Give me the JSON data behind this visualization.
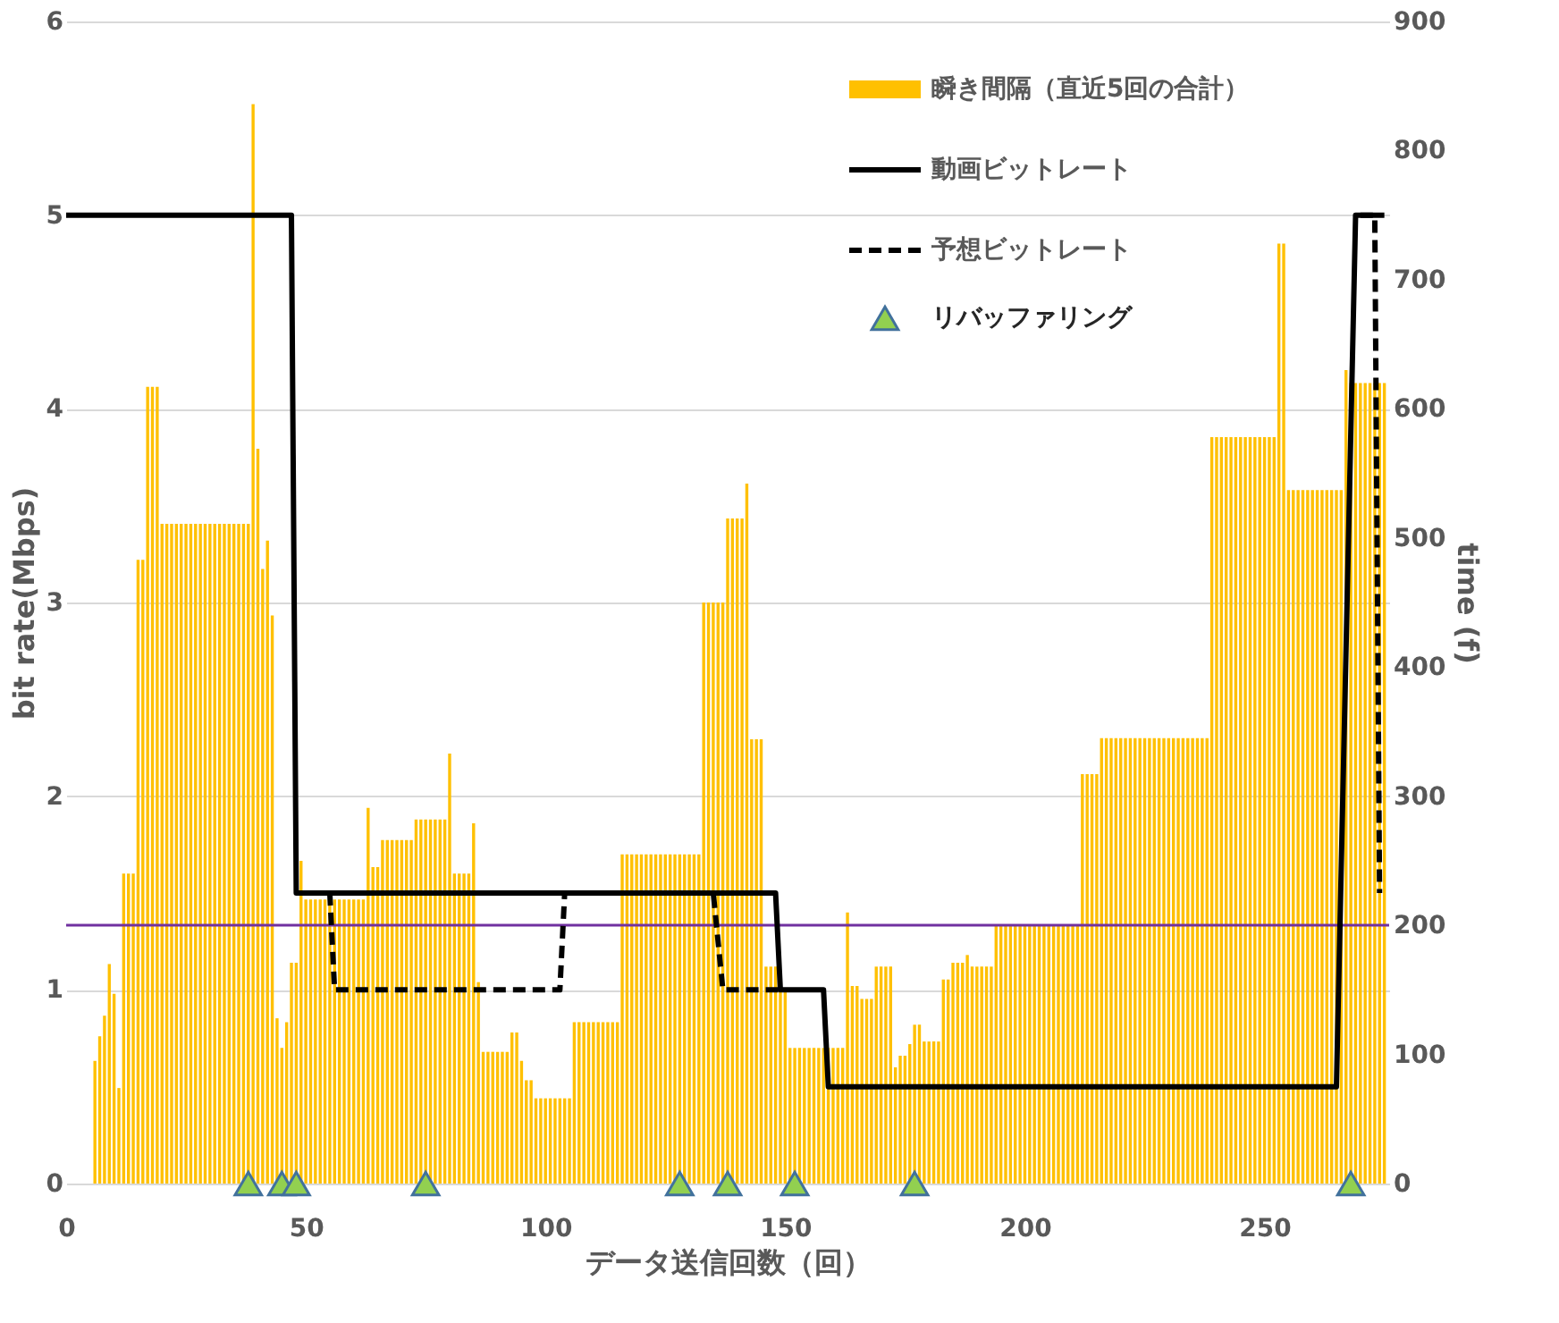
{
  "chart_data": {
    "type": "bar",
    "xlabel": "データ送信回数（回）",
    "ylabel": "bit rate(Mbps)",
    "y2label": "time (f)",
    "xlim": [
      0,
      276
    ],
    "xticks": [
      0,
      50,
      100,
      150,
      200,
      250
    ],
    "ylim": [
      0,
      6
    ],
    "yticks": [
      0,
      1,
      2,
      3,
      4,
      5,
      6
    ],
    "y2lim": [
      0,
      900
    ],
    "y2ticks": [
      0,
      100,
      200,
      300,
      400,
      500,
      600,
      700,
      800,
      900
    ],
    "grid": "y",
    "legend": "top right",
    "ref_lines": [
      {
        "axis": "y2",
        "value": 200,
        "color": "#7030a0"
      }
    ],
    "series": [
      {
        "name": "瞬き間隔（直近5回の合計）",
        "axis": "y2",
        "color": "#ffc000",
        "x": [
          6,
          7,
          8,
          9,
          10,
          11,
          12,
          13,
          14,
          15,
          16,
          17,
          18,
          19,
          20,
          21,
          22,
          23,
          24,
          25,
          26,
          27,
          28,
          29,
          30,
          31,
          32,
          33,
          34,
          35,
          36,
          37,
          38,
          39,
          40,
          41,
          42,
          43,
          44,
          45,
          46,
          47,
          48,
          49,
          50,
          51,
          52,
          53,
          54,
          55,
          56,
          57,
          58,
          59,
          60,
          61,
          62,
          63,
          64,
          65,
          66,
          67,
          68,
          69,
          70,
          71,
          72,
          73,
          74,
          75,
          76,
          77,
          78,
          79,
          80,
          81,
          82,
          83,
          84,
          85,
          86,
          87,
          88,
          89,
          90,
          91,
          92,
          93,
          94,
          95,
          96,
          97,
          98,
          99,
          100,
          101,
          102,
          103,
          104,
          105,
          106,
          107,
          108,
          109,
          110,
          111,
          112,
          113,
          114,
          115,
          116,
          117,
          118,
          119,
          120,
          121,
          122,
          123,
          124,
          125,
          126,
          127,
          128,
          129,
          130,
          131,
          132,
          133,
          134,
          135,
          136,
          137,
          138,
          139,
          140,
          141,
          142,
          143,
          144,
          145,
          146,
          147,
          148,
          149,
          150,
          151,
          152,
          153,
          154,
          155,
          156,
          157,
          158,
          159,
          160,
          161,
          162,
          163,
          164,
          165,
          166,
          167,
          168,
          169,
          170,
          171,
          172,
          173,
          174,
          175,
          176,
          177,
          178,
          179,
          180,
          181,
          182,
          183,
          184,
          185,
          186,
          187,
          188,
          189,
          190,
          191,
          192,
          193,
          194,
          195,
          196,
          197,
          198,
          199,
          200,
          201,
          202,
          203,
          204,
          205,
          206,
          207,
          208,
          209,
          210,
          211,
          212,
          213,
          214,
          215,
          216,
          217,
          218,
          219,
          220,
          221,
          222,
          223,
          224,
          225,
          226,
          227,
          228,
          229,
          230,
          231,
          232,
          233,
          234,
          235,
          236,
          237,
          238,
          239,
          240,
          241,
          242,
          243,
          244,
          245,
          246,
          247,
          248,
          249,
          250,
          251,
          252,
          253,
          254,
          255,
          256,
          257,
          258,
          259,
          260,
          261,
          262,
          263,
          264,
          265,
          266,
          267,
          268,
          269,
          270,
          271,
          272,
          273,
          274,
          275
        ],
        "values": [
          95,
          114,
          130,
          170,
          147,
          74,
          240,
          240,
          240,
          483,
          483,
          617,
          617,
          617,
          511,
          511,
          511,
          511,
          511,
          511,
          511,
          511,
          511,
          511,
          511,
          511,
          511,
          511,
          511,
          511,
          511,
          511,
          511,
          836,
          569,
          476,
          498,
          440,
          128,
          105,
          125,
          171,
          171,
          250,
          220,
          220,
          220,
          220,
          220,
          220,
          220,
          220,
          220,
          220,
          220,
          220,
          220,
          291,
          245,
          245,
          266,
          266,
          266,
          266,
          266,
          266,
          266,
          282,
          282,
          282,
          282,
          282,
          282,
          282,
          333,
          240,
          240,
          240,
          240,
          279,
          156,
          102,
          102,
          102,
          102,
          102,
          102,
          117,
          117,
          95,
          80,
          80,
          66,
          66,
          66,
          66,
          66,
          66,
          66,
          66,
          125,
          125,
          125,
          125,
          125,
          125,
          125,
          125,
          125,
          125,
          255,
          255,
          255,
          255,
          255,
          255,
          255,
          255,
          255,
          255,
          255,
          255,
          255,
          255,
          255,
          255,
          255,
          450,
          450,
          450,
          450,
          450,
          515,
          515,
          515,
          515,
          542,
          344,
          344,
          344,
          168,
          168,
          168,
          150,
          150,
          105,
          105,
          105,
          105,
          105,
          105,
          105,
          105,
          105,
          105,
          105,
          105,
          210,
          153,
          153,
          143,
          143,
          143,
          168,
          168,
          168,
          168,
          90,
          99,
          99,
          108,
          123,
          123,
          110,
          110,
          110,
          110,
          158,
          158,
          171,
          171,
          171,
          177,
          168,
          168,
          168,
          168,
          168,
          200,
          200,
          200,
          200,
          200,
          200,
          200,
          200,
          200,
          200,
          200,
          200,
          200,
          200,
          200,
          200,
          200,
          200,
          317,
          317,
          317,
          317,
          345,
          345,
          345,
          345,
          345,
          345,
          345,
          345,
          345,
          345,
          345,
          345,
          345,
          345,
          345,
          345,
          345,
          345,
          345,
          345,
          345,
          345,
          345,
          578,
          578,
          578,
          578,
          578,
          578,
          578,
          578,
          578,
          578,
          578,
          578,
          578,
          578,
          728,
          728,
          537,
          537,
          537,
          537,
          537,
          537,
          537,
          537,
          537,
          537,
          537,
          537,
          630,
          620,
          620,
          620,
          620,
          620,
          620,
          620,
          620
        ]
      },
      {
        "name": "動画ビットレート",
        "type": "line",
        "color": "#000000",
        "line_style": "solid",
        "x": [
          0,
          47,
          48,
          148,
          149,
          158,
          159,
          265,
          269,
          275
        ],
        "values": [
          5,
          5,
          1.5,
          1.5,
          1,
          1,
          0.5,
          0.5,
          5,
          5
        ]
      },
      {
        "name": "予想ビットレート",
        "type": "line",
        "color": "#000000",
        "line_style": "dashed",
        "x": [
          55,
          56,
          103,
          104,
          135,
          137,
          149,
          150,
          270,
          273,
          274
        ],
        "values": [
          1.5,
          1,
          1,
          1.5,
          1.5,
          1,
          1,
          null,
          5,
          5,
          1.5
        ]
      },
      {
        "name": "リバッファリング",
        "type": "scatter",
        "marker": "triangle",
        "color": "#92d050",
        "x": [
          38,
          45,
          48,
          75,
          128,
          138,
          152,
          177,
          268
        ],
        "values": [
          0,
          0,
          0,
          0,
          0,
          0,
          0,
          0,
          0
        ]
      }
    ]
  }
}
